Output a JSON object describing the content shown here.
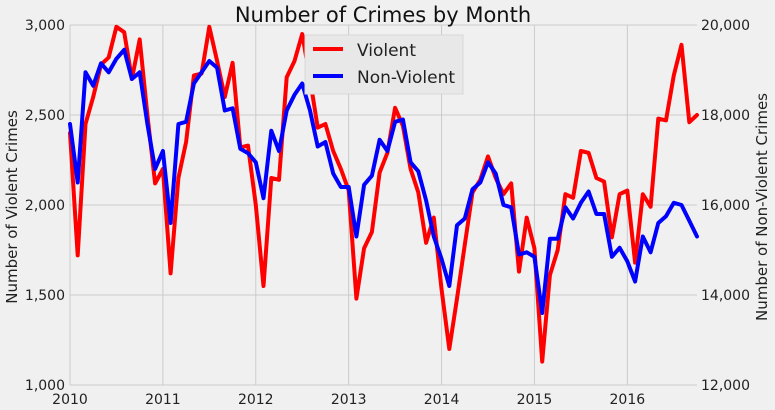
{
  "chart_data": {
    "type": "line",
    "title": "Number of Crimes by Month",
    "xlabel": "",
    "ylabel_left": "Number of Violent Crimes",
    "ylabel_right": "Number of Non-Violent Crimes",
    "x_ticks": [
      "2010",
      "2011",
      "2012",
      "2013",
      "2014",
      "2015",
      "2016"
    ],
    "y_left_ticks": [
      "1,000",
      "1,500",
      "2,000",
      "2,500",
      "3,000"
    ],
    "y_right_ticks": [
      "12,000",
      "14,000",
      "16,000",
      "18,000",
      "20,000"
    ],
    "ylim_left": [
      1000,
      3000
    ],
    "ylim_right": [
      12000,
      20000
    ],
    "xlim": [
      "2010-01",
      "2016-10"
    ],
    "grid": true,
    "legend_position": "top-center",
    "series": [
      {
        "name": "Violent",
        "axis": "left",
        "color": "#ff0000",
        "x": [
          "2010-01",
          "2010-02",
          "2010-03",
          "2010-04",
          "2010-05",
          "2010-06",
          "2010-07",
          "2010-08",
          "2010-09",
          "2010-10",
          "2010-11",
          "2010-12",
          "2011-01",
          "2011-02",
          "2011-03",
          "2011-04",
          "2011-05",
          "2011-06",
          "2011-07",
          "2011-08",
          "2011-09",
          "2011-10",
          "2011-11",
          "2011-12",
          "2012-01",
          "2012-02",
          "2012-03",
          "2012-04",
          "2012-05",
          "2012-06",
          "2012-07",
          "2012-08",
          "2012-09",
          "2012-10",
          "2012-11",
          "2012-12",
          "2013-01",
          "2013-02",
          "2013-03",
          "2013-04",
          "2013-05",
          "2013-06",
          "2013-07",
          "2013-08",
          "2013-09",
          "2013-10",
          "2013-11",
          "2013-12",
          "2014-01",
          "2014-02",
          "2014-03",
          "2014-04",
          "2014-05",
          "2014-06",
          "2014-07",
          "2014-08",
          "2014-09",
          "2014-10",
          "2014-11",
          "2014-12",
          "2015-01",
          "2015-02",
          "2015-03",
          "2015-04",
          "2015-05",
          "2015-06",
          "2015-07",
          "2015-08",
          "2015-09",
          "2015-10",
          "2015-11",
          "2015-12",
          "2016-01",
          "2016-02",
          "2016-03",
          "2016-04",
          "2016-05",
          "2016-06",
          "2016-07",
          "2016-08",
          "2016-09",
          "2016-10"
        ],
        "values": [
          2400,
          1720,
          2450,
          2600,
          2780,
          2820,
          2990,
          2960,
          2700,
          2920,
          2500,
          2120,
          2200,
          1620,
          2150,
          2350,
          2720,
          2730,
          2990,
          2800,
          2600,
          2790,
          2320,
          2330,
          2000,
          1550,
          2150,
          2140,
          2710,
          2800,
          2950,
          2700,
          2430,
          2450,
          2300,
          2200,
          2080,
          1480,
          1760,
          1850,
          2180,
          2290,
          2540,
          2440,
          2200,
          2070,
          1790,
          1930,
          1530,
          1200,
          1480,
          1780,
          2070,
          2140,
          2270,
          2150,
          2060,
          2120,
          1630,
          1930,
          1760,
          1130,
          1610,
          1750,
          2060,
          2040,
          2300,
          2290,
          2150,
          2130,
          1820,
          2060,
          2080,
          1680,
          2060,
          1990,
          2480,
          2470,
          2720,
          2890,
          2460,
          2500
        ]
      },
      {
        "name": "Non-Violent",
        "axis": "right",
        "color": "#0000ff",
        "x": [
          "2010-01",
          "2010-02",
          "2010-03",
          "2010-04",
          "2010-05",
          "2010-06",
          "2010-07",
          "2010-08",
          "2010-09",
          "2010-10",
          "2010-11",
          "2010-12",
          "2011-01",
          "2011-02",
          "2011-03",
          "2011-04",
          "2011-05",
          "2011-06",
          "2011-07",
          "2011-08",
          "2011-09",
          "2011-10",
          "2011-11",
          "2011-12",
          "2012-01",
          "2012-02",
          "2012-03",
          "2012-04",
          "2012-05",
          "2012-06",
          "2012-07",
          "2012-08",
          "2012-09",
          "2012-10",
          "2012-11",
          "2012-12",
          "2013-01",
          "2013-02",
          "2013-03",
          "2013-04",
          "2013-05",
          "2013-06",
          "2013-07",
          "2013-08",
          "2013-09",
          "2013-10",
          "2013-11",
          "2013-12",
          "2014-01",
          "2014-02",
          "2014-03",
          "2014-04",
          "2014-05",
          "2014-06",
          "2014-07",
          "2014-08",
          "2014-09",
          "2014-10",
          "2014-11",
          "2014-12",
          "2015-01",
          "2015-02",
          "2015-03",
          "2015-04",
          "2015-05",
          "2015-06",
          "2015-07",
          "2015-08",
          "2015-09",
          "2015-10",
          "2015-11",
          "2015-12",
          "2016-01",
          "2016-02",
          "2016-03",
          "2016-04",
          "2016-05",
          "2016-06",
          "2016-07",
          "2016-08",
          "2016-09",
          "2016-10"
        ],
        "values": [
          17800,
          16500,
          18950,
          18650,
          19150,
          18950,
          19250,
          19450,
          18800,
          18950,
          17800,
          16800,
          17200,
          15600,
          17800,
          17850,
          18700,
          18950,
          19200,
          19050,
          18100,
          18150,
          17250,
          17150,
          16950,
          16150,
          17650,
          17200,
          18100,
          18450,
          18700,
          18100,
          17300,
          17400,
          16700,
          16400,
          16400,
          15300,
          16450,
          16650,
          17450,
          17200,
          17850,
          17900,
          16950,
          16750,
          16100,
          15300,
          14800,
          14200,
          15550,
          15700,
          16350,
          16500,
          16950,
          16700,
          16000,
          15950,
          14900,
          14950,
          14850,
          13600,
          15250,
          15250,
          15950,
          15700,
          16050,
          16300,
          15800,
          15800,
          14850,
          15050,
          14750,
          14300,
          15300,
          14950,
          15600,
          15750,
          16050,
          16000,
          15650,
          15300
        ]
      }
    ]
  }
}
